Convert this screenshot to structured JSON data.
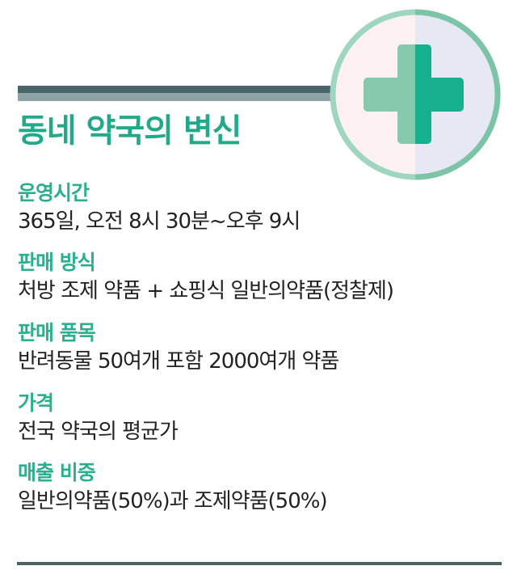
{
  "title": "동네 약국의 변신",
  "icon": "pharmacy-cross-icon",
  "colors": {
    "accent": "#2bb08f",
    "bar": "#4a6569",
    "cross_light": "#86c9ac",
    "cross_dark": "#17b08e"
  },
  "sections": [
    {
      "heading": "운영시간",
      "body": "365일, 오전 8시 30분~오후 9시"
    },
    {
      "heading": "판매 방식",
      "body": "처방 조제 약품 + 쇼핑식 일반의약품(정찰제)"
    },
    {
      "heading": "판매 품목",
      "body": "반려동물 50여개 포함 2000여개 약품"
    },
    {
      "heading": "가격",
      "body": "전국 약국의 평균가"
    },
    {
      "heading": "매출 비중",
      "body": "일반의약품(50%)과 조제약품(50%)"
    }
  ]
}
